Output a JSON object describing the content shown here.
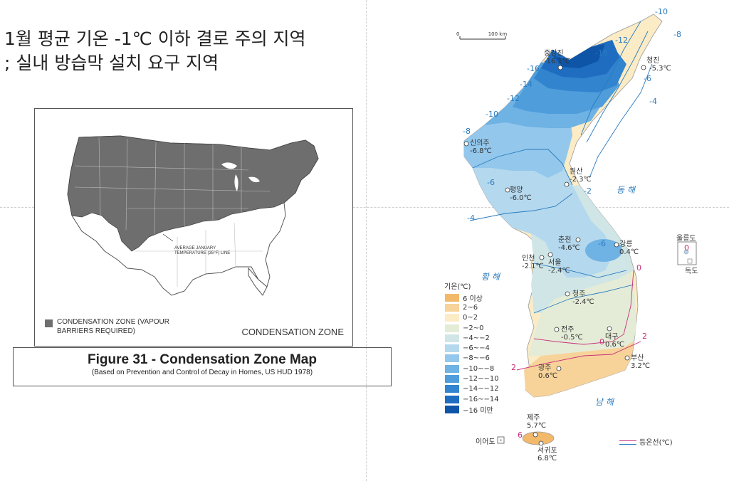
{
  "heading": {
    "line1": "1월 평균 기온 -1℃ 이하 결로 주의 지역",
    "line2": "; 실내 방습막 설치 요구 지역"
  },
  "us_map": {
    "legend_text": "CONDENSATION ZONE (VAPOUR BARRIERS REQUIRED)",
    "panel_title": "CONDENSATION ZONE",
    "line_label": "AVERAGE JANUARY TEMPERATURE (35°F) LINE",
    "zone_color": "#6e6e6e"
  },
  "caption": {
    "title": "Figure 31 - Condensation Zone Map",
    "subtitle": "(Based on Prevention and Control of Decay in Homes, US HUD 1978)"
  },
  "korea_map": {
    "scale": {
      "zero": "0",
      "end": "100 km"
    },
    "cities": [
      {
        "name": "중강진",
        "temp": "-16.1℃"
      },
      {
        "name": "청진",
        "temp": "-5.3℃"
      },
      {
        "name": "신의주",
        "temp": "-6.8℃"
      },
      {
        "name": "원산",
        "temp": "-2.3℃"
      },
      {
        "name": "평양",
        "temp": "-6.0℃"
      },
      {
        "name": "춘천",
        "temp": "-4.6℃"
      },
      {
        "name": "강릉",
        "temp": "0.4℃"
      },
      {
        "name": "인천",
        "temp": "-2.1℃"
      },
      {
        "name": "서울",
        "temp": "-2.4℃"
      },
      {
        "name": "청주",
        "temp": "-2.4℃"
      },
      {
        "name": "전주",
        "temp": "-0.5℃"
      },
      {
        "name": "대구",
        "temp": "0.6℃"
      },
      {
        "name": "부산",
        "temp": "3.2℃"
      },
      {
        "name": "광주",
        "temp": "0.6℃"
      },
      {
        "name": "제주",
        "temp": "5.7℃"
      },
      {
        "name": "서귀포",
        "temp": "6.8℃"
      }
    ],
    "islands": {
      "ulleung": "울릉도",
      "dokdo": "독도",
      "ieodo": "이어도"
    },
    "seas": {
      "east": "동 해",
      "west": "황 해",
      "south": "남 해"
    },
    "iso_labels": [
      "-10",
      "-8",
      "-12",
      "-16",
      "-14",
      "-6",
      "-4",
      "-2",
      "0",
      "2",
      "6"
    ],
    "legend": {
      "title": "기온(℃)",
      "items": [
        {
          "label": "6 이상",
          "color": "#f2b96b"
        },
        {
          "label": "2~6",
          "color": "#f7d39a"
        },
        {
          "label": "0~2",
          "color": "#fbecc6"
        },
        {
          "label": "−2~0",
          "color": "#e4ecd7"
        },
        {
          "label": "−4~−2",
          "color": "#cfe5e6"
        },
        {
          "label": "−6~−4",
          "color": "#b4d8ee"
        },
        {
          "label": "−8~−6",
          "color": "#93c7ec"
        },
        {
          "label": "−10~−8",
          "color": "#6fb2e4"
        },
        {
          "label": "−12~−10",
          "color": "#4f9ddb"
        },
        {
          "label": "−14~−12",
          "color": "#3384cf"
        },
        {
          "label": "−16~−14",
          "color": "#1f6dc0"
        },
        {
          "label": "−16 미만",
          "color": "#0e55a8"
        }
      ],
      "isotherm_label": "등온선(℃)"
    }
  }
}
